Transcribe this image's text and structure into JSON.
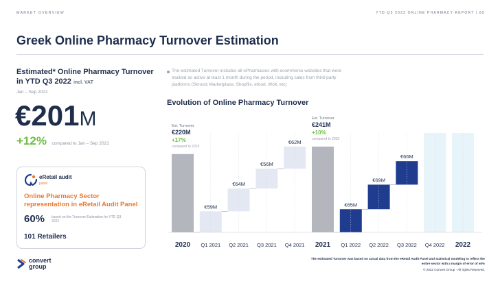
{
  "header": {
    "section": "MARKET OVERVIEW",
    "report": "YTD Q3 2022 ONLINE PHARMACY REPORT  |  85"
  },
  "title": "Greek Online Pharmacy Turnover Estimation",
  "estimate": {
    "heading": "Estimated* Online Pharmacy Turnover in YTD Q3 2022",
    "heading_suffix": "incl. VAT",
    "period": "Jan – Sep 2022",
    "value_main": "€201",
    "value_suffix": "M",
    "growth": "+12%",
    "growth_note": "compared to Jan – Sep 2021"
  },
  "panel": {
    "brand": "eRetail audit",
    "brand_sub": "panel",
    "heading": "Online Pharmacy Sector representation in eRetail Audit Panel",
    "pct": "60%",
    "pct_note": "based on the Turnover Estimation for YTD Q3 2022",
    "retailers": "101 Retailers"
  },
  "note": "The estimated Turnover includes all ePharmacies with ecommerce websites that were tracked as active at least 1 month during the period, including sales from third-party platforms (Skroutz Marketplace, Shopflix, efood, Wolt, etc)",
  "chart_title": "Evolution of Online Pharmacy Turnover",
  "chart_data": {
    "type": "bar",
    "subtype": "waterfall",
    "unit": "€M",
    "categories": [
      "2020",
      "Q1 2021",
      "Q2 2021",
      "Q3 2021",
      "Q4 2021",
      "2021",
      "Q1 2022",
      "Q2 2022",
      "Q3 2022",
      "Q4 2022",
      "2022"
    ],
    "values": [
      220,
      59,
      64,
      56,
      62,
      241,
      65,
      69,
      66,
      null,
      null
    ],
    "value_labels": [
      "",
      "€59M",
      "€64M",
      "€56M",
      "€62M",
      "",
      "€65M",
      "€69M",
      "€66M",
      "",
      ""
    ],
    "bar_kind": [
      "total",
      "step",
      "step",
      "step",
      "step",
      "total",
      "step",
      "step",
      "step",
      "projection",
      "projection"
    ],
    "ylim": [
      0,
      260
    ],
    "grid": false,
    "totals": [
      {
        "category": "2020",
        "label": "Est. Turnover",
        "value": "€220M",
        "growth": "+17%",
        "note": "compared to 2019"
      },
      {
        "category": "2021",
        "label": "Est. Turnover",
        "value": "€241M",
        "growth": "+10%",
        "note": "compared to 2020"
      }
    ],
    "colors": {
      "total": "#b3b6bd",
      "step_2021": "#e4e8f3",
      "step_2022": "#1f3c8f",
      "projection": "#e4f3fa",
      "growth": "#6cbf3f"
    }
  },
  "footnote": "The estimated Turnover was based on actual data from the eRetail Audit Panel and statistical modeling to reflect the entire sector with a margin of error of ±5%",
  "copyright": "© 2022 Convert Group - All rights Reserved.",
  "logo": "convert group"
}
